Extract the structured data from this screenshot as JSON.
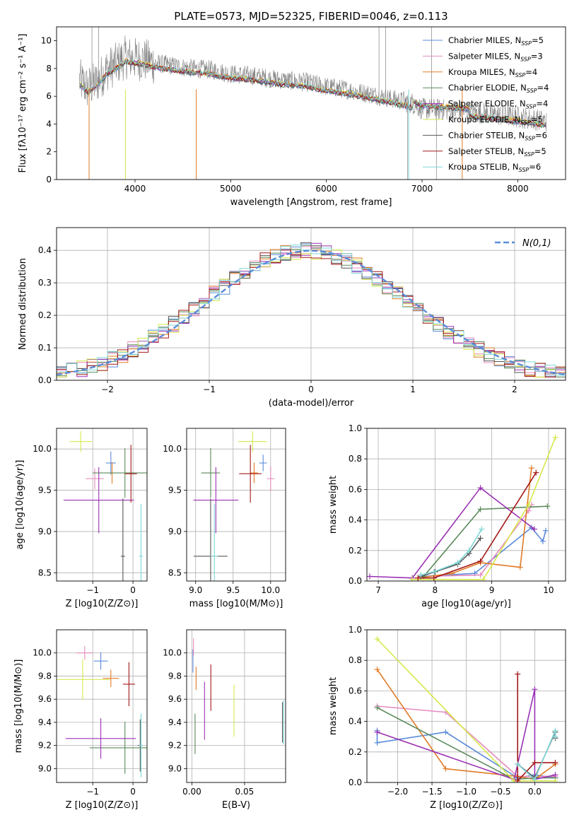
{
  "figure_title": "PLATE=0573, MJD=52325, FIBERID=0046, z=0.113",
  "series_colors": [
    "#5b8bd9",
    "#e58cc0",
    "#e07b26",
    "#5a8a5a",
    "#9b30b5",
    "#d6e84a",
    "#555555",
    "#a41818",
    "#7fd6d6"
  ],
  "chart_data": [
    {
      "type": "line",
      "xlabel": "wavelength [Angstrom, rest frame]",
      "ylabel": "Flux [fλ10⁻¹⁷ erg cm⁻² s⁻¹ A⁻¹]",
      "xlim": [
        3180,
        8500
      ],
      "ylim": [
        0,
        11
      ],
      "xticks": [
        4000,
        5000,
        6000,
        7000,
        8000
      ],
      "yticks": [
        0,
        2,
        4,
        6,
        8,
        10
      ],
      "grid": false,
      "legend_placement": "top-right",
      "data_color": "#808080",
      "data_anchors": [
        [
          3400,
          7.3
        ],
        [
          3500,
          6.6
        ],
        [
          3600,
          7.0
        ],
        [
          3700,
          7.9
        ],
        [
          3800,
          8.3
        ],
        [
          3900,
          8.8
        ],
        [
          4000,
          8.7
        ],
        [
          4100,
          8.6
        ],
        [
          4200,
          8.4
        ],
        [
          4400,
          8.2
        ],
        [
          4600,
          8.0
        ],
        [
          4800,
          7.9
        ],
        [
          5000,
          7.6
        ],
        [
          5200,
          7.5
        ],
        [
          5500,
          7.2
        ],
        [
          5800,
          7.0
        ],
        [
          6000,
          6.7
        ],
        [
          6200,
          6.5
        ],
        [
          6500,
          6.1
        ],
        [
          6700,
          5.8
        ],
        [
          6900,
          5.5
        ],
        [
          7000,
          5.1
        ],
        [
          7300,
          5.0
        ],
        [
          7600,
          4.8
        ],
        [
          8000,
          4.5
        ],
        [
          8300,
          4.2
        ]
      ],
      "series": [
        {
          "name": "Chabrier MILES, N$_{SSP}$=5",
          "legend": [
            "Chabrier MILES, N",
            "SSP",
            "=5"
          ]
        },
        {
          "name": "Salpeter MILES, N$_{SSP}$=3",
          "legend": [
            "Salpeter MILES, N",
            "SSP",
            "=3"
          ]
        },
        {
          "name": "Kroupa MILES, N$_{SSP}$=4",
          "legend": [
            "Kroupa MILES, N",
            "SSP",
            "=4"
          ]
        },
        {
          "name": "Chabrier ELODIE, N$_{SSP}$=4",
          "legend": [
            "Chabrier ELODIE, N",
            "SSP",
            "=4"
          ]
        },
        {
          "name": "Salpeter ELODIE, N$_{SSP}$=4",
          "legend": [
            "Salpeter ELODIE, N",
            "SSP",
            "=4"
          ]
        },
        {
          "name": "Kroupa ELODIE, N$_{SSP}$=5",
          "legend": [
            "Kroupa ELODIE, N",
            "SSP",
            "=5"
          ]
        },
        {
          "name": "Chabrier STELIB, N$_{SSP}$=6",
          "legend": [
            "Chabrier STELIB, N",
            "SSP",
            "=6"
          ]
        },
        {
          "name": "Salpeter STELIB, N$_{SSP}$=5",
          "legend": [
            "Salpeter STELIB, N",
            "SSP",
            "=5"
          ]
        },
        {
          "name": "Kroupa STELIB, N$_{SSP}$=6",
          "legend": [
            "Kroupa STELIB, N",
            "SSP",
            "=6"
          ]
        }
      ]
    },
    {
      "type": "line",
      "xlabel": "(data-model)/error",
      "ylabel": "Normed distribution",
      "xlim": [
        -2.5,
        2.5
      ],
      "ylim": [
        0,
        0.47
      ],
      "xticks": [
        -2,
        -1,
        0,
        1,
        2
      ],
      "yticks": [
        0.0,
        0.1,
        0.2,
        0.3,
        0.4
      ],
      "grid": true,
      "legend_placement": "top-right",
      "gaussian": {
        "name": "N(0,1)",
        "mean": 0,
        "sigma": 1,
        "style": "dashed",
        "color": "#5b8bd9"
      },
      "histogram_bin_width": 0.1
    },
    {
      "type": "scatter",
      "ylabel": "age  [log10(age/yr)]",
      "xlabel": "Z [log10(Z/Z⊙)]",
      "xlim": [
        -1.9,
        0.35
      ],
      "ylim": [
        8.4,
        10.25
      ],
      "xticks": [
        -1,
        0
      ],
      "yticks": [
        8.5,
        9.0,
        9.5,
        10.0
      ],
      "grid": true,
      "points": [
        [
          -0.55,
          9.83,
          0.25,
          0.28
        ],
        [
          -0.95,
          9.64,
          0.45,
          0.25
        ],
        [
          -0.52,
          9.71,
          0.12,
          0.26
        ],
        [
          -0.2,
          9.71,
          1.6,
          0.6
        ],
        [
          -0.85,
          9.38,
          1.75,
          0.8
        ],
        [
          -1.3,
          10.09,
          0.55,
          0.25
        ],
        [
          -0.25,
          8.7,
          0.1,
          1.4
        ],
        [
          -0.05,
          9.7,
          0.3,
          0.7
        ],
        [
          0.2,
          8.7,
          0.1,
          1.27
        ]
      ]
    },
    {
      "type": "scatter",
      "ylabel": "",
      "xlabel": "mass [log10(M/M⊙)]",
      "xlim": [
        8.88,
        10.2
      ],
      "ylim": [
        8.4,
        10.25
      ],
      "xticks": [
        9.0,
        9.5,
        10.0
      ],
      "yticks": [
        8.5,
        9.0,
        9.5,
        10.0
      ],
      "grid": true,
      "points": [
        [
          9.9,
          9.83,
          0.1,
          0.2
        ],
        [
          10.0,
          9.64,
          0.1,
          0.3
        ],
        [
          9.78,
          9.71,
          0.1,
          0.25
        ],
        [
          9.2,
          9.71,
          0.25,
          0.6
        ],
        [
          9.27,
          9.38,
          0.6,
          0.8
        ],
        [
          9.76,
          10.09,
          0.38,
          0.25
        ],
        [
          9.2,
          8.7,
          0.45,
          1.4
        ],
        [
          9.73,
          9.7,
          0.3,
          0.7
        ],
        [
          9.25,
          8.7,
          0.1,
          1.27
        ]
      ]
    },
    {
      "type": "line",
      "xlabel": "age  [log10(age/yr)]",
      "ylabel": "mass weight",
      "xlim": [
        6.8,
        10.3
      ],
      "ylim": [
        0,
        1.0
      ],
      "xticks": [
        7,
        8,
        9,
        10
      ],
      "yticks": [
        0.0,
        0.2,
        0.4,
        0.6,
        0.8,
        1.0
      ],
      "grid": true,
      "series": [
        {
          "x": [
            7.75,
            8.7,
            9.7,
            9.9,
            9.95
          ],
          "y": [
            0.03,
            0.05,
            0.35,
            0.26,
            0.33
          ]
        },
        {
          "x": [
            7.8,
            8.8,
            9.65,
            9.7
          ],
          "y": [
            0.03,
            0.04,
            0.46,
            0.5
          ]
        },
        {
          "x": [
            7.7,
            8.3,
            8.8,
            9.5,
            9.7
          ],
          "y": [
            0.02,
            0.05,
            0.12,
            0.09,
            0.74
          ]
        },
        {
          "x": [
            7.8,
            8.8,
            9.98
          ],
          "y": [
            0.03,
            0.47,
            0.49
          ]
        },
        {
          "x": [
            6.85,
            7.6,
            8.8,
            9.75
          ],
          "y": [
            0.03,
            0.02,
            0.61,
            0.34
          ]
        },
        {
          "x": [
            7.6,
            8.85,
            9.65,
            10.12
          ],
          "y": [
            0.01,
            0.01,
            0.5,
            0.94
          ]
        },
        {
          "x": [
            7.75,
            8.0,
            8.4,
            8.6,
            8.8
          ],
          "y": [
            0.03,
            0.06,
            0.11,
            0.18,
            0.28
          ]
        },
        {
          "x": [
            7.7,
            7.98,
            8.8,
            9.78
          ],
          "y": [
            0.02,
            0.02,
            0.13,
            0.71
          ]
        },
        {
          "x": [
            7.75,
            7.98,
            8.4,
            8.6,
            8.82
          ],
          "y": [
            0.04,
            0.06,
            0.12,
            0.2,
            0.34
          ]
        }
      ]
    },
    {
      "type": "scatter",
      "ylabel": "mass [log10(M/M⊙)]",
      "xlabel": "Z [log10(Z/Z⊙)]",
      "xlim": [
        -1.9,
        0.35
      ],
      "ylim": [
        8.88,
        10.2
      ],
      "xticks": [
        -1,
        0
      ],
      "yticks": [
        9.0,
        9.2,
        9.4,
        9.6,
        9.8,
        10.0
      ],
      "grid": true,
      "points": [
        [
          -0.8,
          9.93,
          0.35,
          0.15
        ],
        [
          -1.2,
          10.0,
          0.4,
          0.12
        ],
        [
          -0.55,
          9.78,
          0.4,
          0.15
        ],
        [
          -0.2,
          9.18,
          1.75,
          0.45
        ],
        [
          -0.8,
          9.26,
          1.75,
          0.35
        ],
        [
          -1.25,
          9.77,
          1.35,
          0.35
        ],
        [
          0.18,
          9.2,
          0.12,
          0.45
        ],
        [
          -0.1,
          9.73,
          0.3,
          0.38
        ],
        [
          0.2,
          9.2,
          0.1,
          0.55
        ]
      ]
    },
    {
      "type": "scatter",
      "ylabel": "",
      "xlabel": "E(B-V)",
      "xlim": [
        -0.005,
        0.089
      ],
      "ylim": [
        8.88,
        10.2
      ],
      "xticks": [
        0.0,
        0.05
      ],
      "yticks": [
        9.0,
        9.2,
        9.4,
        9.6,
        9.8,
        10.0
      ],
      "grid": true,
      "points": [
        [
          0.001,
          9.93,
          0,
          0.2
        ],
        [
          0.0015,
          10.05,
          0,
          0.15
        ],
        [
          0.004,
          9.78,
          0,
          0.2
        ],
        [
          0.003,
          9.3,
          0,
          0.35
        ],
        [
          0.012,
          9.5,
          0,
          0.5
        ],
        [
          0.04,
          9.5,
          0,
          0.45
        ],
        [
          0.086,
          9.4,
          0,
          0.35
        ],
        [
          0.018,
          9.7,
          0,
          0.4
        ],
        [
          0.087,
          9.4,
          0,
          0.38
        ]
      ]
    },
    {
      "type": "line",
      "xlabel": "Z [log10(Z/Z⊙)]",
      "ylabel": "mass weight",
      "xlim": [
        -2.45,
        0.45
      ],
      "ylim": [
        0,
        1.0
      ],
      "xticks": [
        -2.0,
        -1.5,
        -1.0,
        -0.5,
        0.0
      ],
      "yticks": [
        0.0,
        0.2,
        0.4,
        0.6,
        0.8,
        1.0
      ],
      "grid": true,
      "series": [
        {
          "x": [
            -2.3,
            -2.3,
            -1.3,
            -0.25,
            0.0,
            0.3
          ],
          "y": [
            0.34,
            0.26,
            0.33,
            0.03,
            0.05,
            0.03
          ]
        },
        {
          "x": [
            -2.3,
            -1.3,
            -0.25,
            0.3
          ],
          "y": [
            0.5,
            0.46,
            0.04,
            0.04
          ]
        },
        {
          "x": [
            -2.3,
            -1.3,
            -0.25,
            0.0,
            0.3
          ],
          "y": [
            0.74,
            0.09,
            0.04,
            0.02,
            0.12
          ]
        },
        {
          "x": [
            -2.3,
            -0.3,
            0.0,
            0.3
          ],
          "y": [
            0.49,
            0.02,
            0.03,
            0.03
          ]
        },
        {
          "x": [
            -2.3,
            -0.3,
            0.0,
            0.0,
            0.3
          ],
          "y": [
            0.33,
            0.02,
            0.61,
            0.02,
            0.05
          ]
        },
        {
          "x": [
            -2.3,
            -0.3,
            0.3
          ],
          "y": [
            0.94,
            0.01,
            0.01
          ]
        },
        {
          "x": [
            -0.25,
            0.0,
            0.3,
            0.3
          ],
          "y": [
            0.12,
            0.03,
            0.33,
            0.29
          ]
        },
        {
          "x": [
            -0.25,
            -0.25,
            0.0,
            0.3
          ],
          "y": [
            0.71,
            0.01,
            0.13,
            0.13
          ]
        },
        {
          "x": [
            -0.25,
            0.0,
            0.3,
            0.3
          ],
          "y": [
            0.12,
            0.02,
            0.34,
            0.3
          ]
        }
      ]
    }
  ]
}
